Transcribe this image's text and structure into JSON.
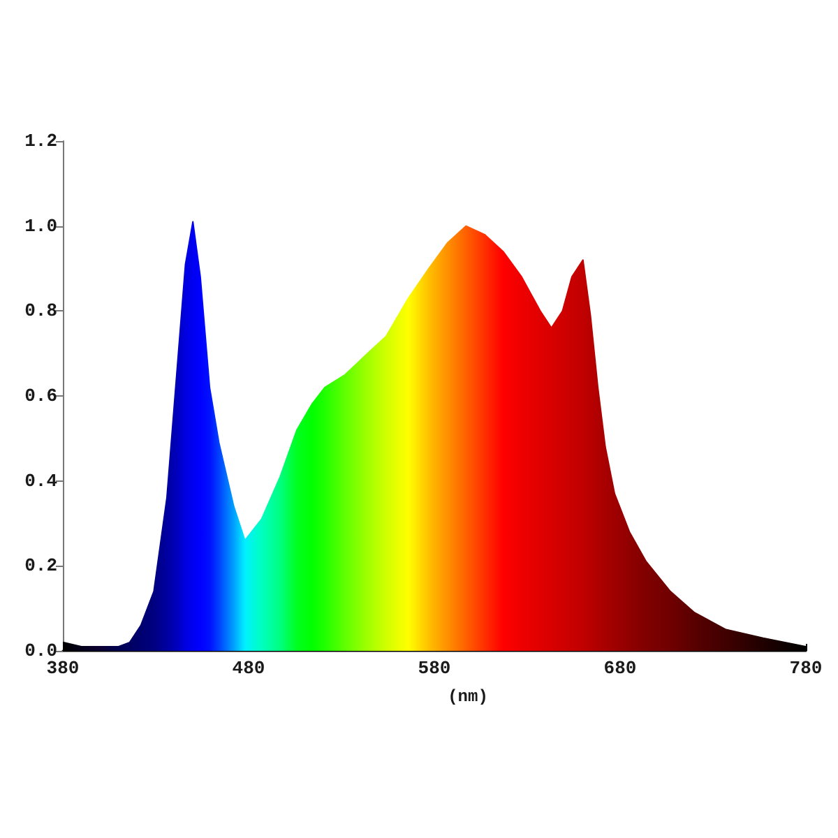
{
  "chart_data": {
    "type": "area",
    "xlabel": "(nm)",
    "x": [
      380,
      390,
      400,
      410,
      416,
      422,
      429,
      436,
      442,
      446,
      450,
      454,
      459,
      464,
      472,
      478,
      487,
      497,
      506,
      514,
      521,
      532,
      544,
      554,
      566,
      577,
      587,
      597,
      607,
      617,
      627,
      637,
      643,
      649,
      654,
      660,
      664,
      668,
      672,
      677,
      685,
      694,
      707,
      720,
      737,
      757,
      780
    ],
    "values": [
      0.02,
      0.01,
      0.01,
      0.01,
      0.02,
      0.06,
      0.14,
      0.36,
      0.69,
      0.91,
      1.01,
      0.88,
      0.62,
      0.49,
      0.34,
      0.26,
      0.31,
      0.41,
      0.52,
      0.58,
      0.62,
      0.65,
      0.7,
      0.74,
      0.83,
      0.9,
      0.96,
      1.0,
      0.98,
      0.94,
      0.88,
      0.8,
      0.76,
      0.8,
      0.88,
      0.92,
      0.79,
      0.62,
      0.48,
      0.37,
      0.28,
      0.21,
      0.14,
      0.09,
      0.05,
      0.03,
      0.01
    ],
    "colors": [
      "#000000",
      "#05001a",
      "#0a0030",
      "#000050",
      "#000060",
      "#000070",
      "#000080",
      "#0000a0",
      "#0000c0",
      "#0000e0",
      "#0000f0",
      "#0000ff",
      "#0010ff",
      "#0040ff",
      "#00a0ff",
      "#00f0ff",
      "#00ffc0",
      "#00ff80",
      "#00ff20",
      "#00ff00",
      "#20ff00",
      "#60ff00",
      "#a0ff00",
      "#d0ff00",
      "#ffff00",
      "#ffc000",
      "#ff9000",
      "#ff6000",
      "#ff3000",
      "#ff0000",
      "#ee0000",
      "#e00000",
      "#d80000",
      "#d00000",
      "#c80000",
      "#c00000",
      "#b80000",
      "#b00000",
      "#a80000",
      "#a00000",
      "#900000",
      "#800000",
      "#700000",
      "#580000",
      "#400000",
      "#200000",
      "#000000"
    ],
    "xlim": [
      380,
      780
    ],
    "xticks": [
      380,
      480,
      580,
      680,
      780
    ],
    "ylim": [
      0,
      1.2
    ],
    "yticks": [
      {
        "value": 0,
        "label": "0.0"
      },
      0.2,
      0.4,
      0.6,
      0.8,
      {
        "value": 1,
        "label": "1.0"
      },
      1.2
    ]
  }
}
